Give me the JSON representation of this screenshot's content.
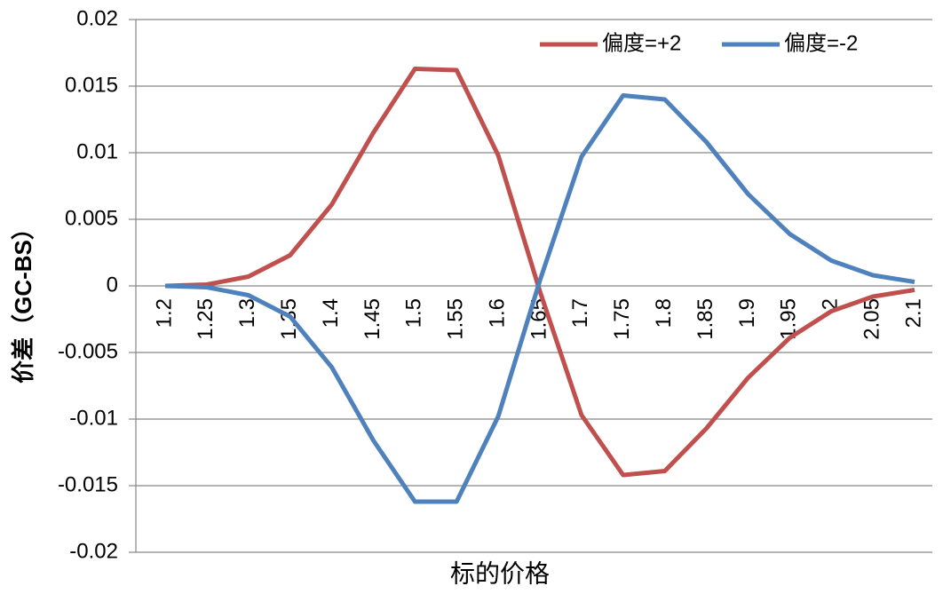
{
  "chart_data": {
    "type": "line",
    "x_label": "标的价格",
    "y_label": "价差（GC-BS）",
    "categories": [
      "1.2",
      "1.25",
      "1.3",
      "1.35",
      "1.4",
      "1.45",
      "1.5",
      "1.55",
      "1.6",
      "1.65",
      "1.7",
      "1.75",
      "1.8",
      "1.85",
      "1.9",
      "1.95",
      "2",
      "2.05",
      "2.1"
    ],
    "series": [
      {
        "name": "偏度=+2",
        "color": "#c0504d",
        "values": [
          0,
          0.0001,
          0.0007,
          0.0023,
          0.0061,
          0.0115,
          0.0163,
          0.0162,
          0.0098,
          -0.0004,
          -0.0097,
          -0.0142,
          -0.0139,
          -0.0107,
          -0.0069,
          -0.0039,
          -0.0019,
          -0.0008,
          -0.0003
        ]
      },
      {
        "name": "偏度=-2",
        "color": "#4f81bd",
        "values": [
          0,
          -0.0001,
          -0.0007,
          -0.0023,
          -0.0061,
          -0.0116,
          -0.0162,
          -0.0162,
          -0.0098,
          0.0004,
          0.0097,
          0.0143,
          0.014,
          0.0108,
          0.0069,
          0.0039,
          0.0019,
          0.0008,
          0.0003
        ]
      }
    ],
    "ylim": [
      -0.02,
      0.02
    ],
    "yticks": [
      -0.02,
      -0.015,
      -0.01,
      -0.005,
      0,
      0.005,
      0.01,
      0.015,
      0.02
    ],
    "grid": true,
    "legend": "top-right"
  }
}
